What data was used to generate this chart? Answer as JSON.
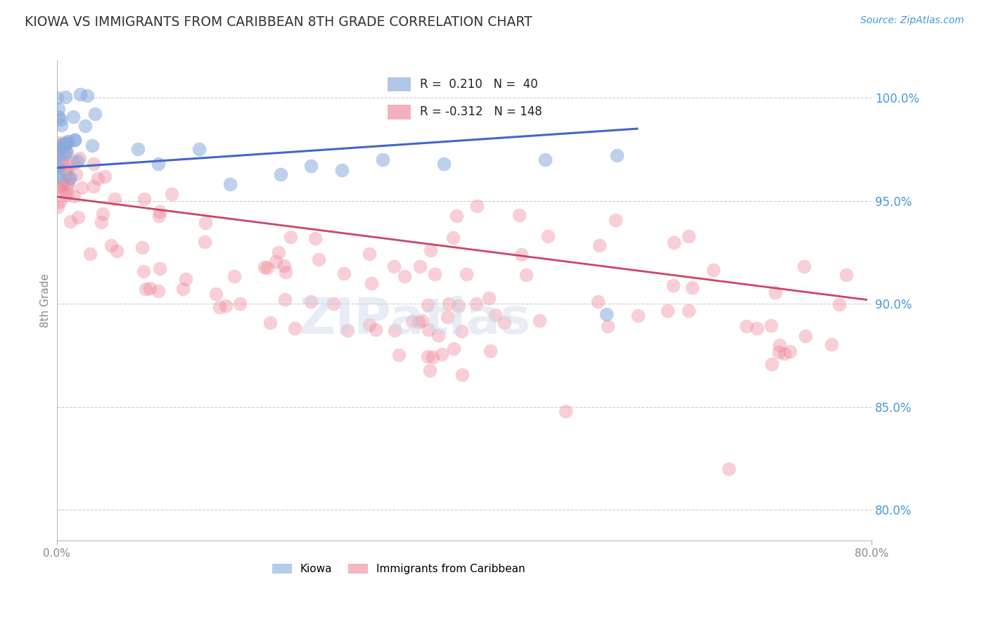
{
  "title": "KIOWA VS IMMIGRANTS FROM CARIBBEAN 8TH GRADE CORRELATION CHART",
  "source": "Source: ZipAtlas.com",
  "ylabel": "8th Grade",
  "ytick_labels": [
    "80.0%",
    "85.0%",
    "90.0%",
    "95.0%",
    "100.0%"
  ],
  "ytick_values": [
    0.8,
    0.85,
    0.9,
    0.95,
    1.0
  ],
  "xlim": [
    0.0,
    0.8
  ],
  "ylim": [
    0.785,
    1.018
  ],
  "background_color": "#ffffff",
  "grid_color": "#cccccc",
  "title_color": "#333333",
  "axis_label_color": "#888888",
  "right_tick_color": "#4499dd",
  "blue_scatter_color": "#88aadd",
  "pink_scatter_color": "#ee8899",
  "blue_line_color": "#4466cc",
  "pink_line_color": "#cc4466",
  "legend_blue_label": "R =  0.210   N =  40",
  "legend_pink_label": "R = -0.312   N = 148",
  "bottom_legend_blue": "Kiowa",
  "bottom_legend_pink": "Immigrants from Caribbean",
  "blue_line_x": [
    0.0,
    0.57
  ],
  "blue_line_y": [
    0.966,
    0.985
  ],
  "pink_line_x": [
    0.0,
    0.795
  ],
  "pink_line_y": [
    0.952,
    0.902
  ]
}
